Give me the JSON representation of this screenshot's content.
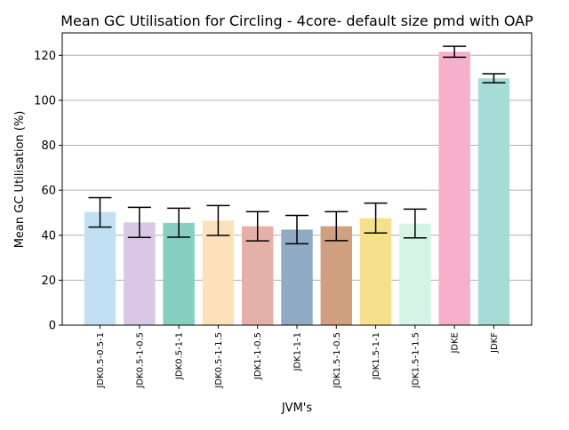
{
  "chart_data": {
    "type": "bar",
    "title": "Mean GC Utilisation for Circling - 4core- default size pmd with OAP",
    "xlabel": "JVM's",
    "ylabel": "Mean GC Utilisation (%)",
    "ylim": [
      0,
      130
    ],
    "yticks": [
      0,
      20,
      40,
      60,
      80,
      100,
      120
    ],
    "grid": "horizontal",
    "categories": [
      "JDK0.5-0.5-1",
      "JDK0.5-1-0.5",
      "JDK0.5-1-1",
      "JDK0.5-1-1.5",
      "JDK1-1-0.5",
      "JDK1-1-1",
      "JDK1.5-1-0.5",
      "JDK1.5-1-1",
      "JDK1.5-1-1.5",
      "JDKE",
      "JDKF"
    ],
    "values": [
      50.3,
      45.7,
      45.5,
      46.5,
      44.0,
      42.5,
      44.0,
      47.6,
      45.2,
      121.6,
      109.8
    ],
    "error_low": [
      43.6,
      39.0,
      39.1,
      39.9,
      37.5,
      36.2,
      37.6,
      41.0,
      38.8,
      119.2,
      107.8
    ],
    "error_high": [
      56.7,
      52.4,
      52.0,
      53.2,
      50.5,
      48.8,
      50.5,
      54.3,
      51.6,
      124.0,
      111.8
    ],
    "colors": [
      "#c2e0f3",
      "#dac7e6",
      "#87cfc2",
      "#fce1ba",
      "#e4b0a8",
      "#8facc4",
      "#d0a080",
      "#f5e08b",
      "#d4f5e5",
      "#f6b0c9",
      "#a5dcd7"
    ]
  }
}
